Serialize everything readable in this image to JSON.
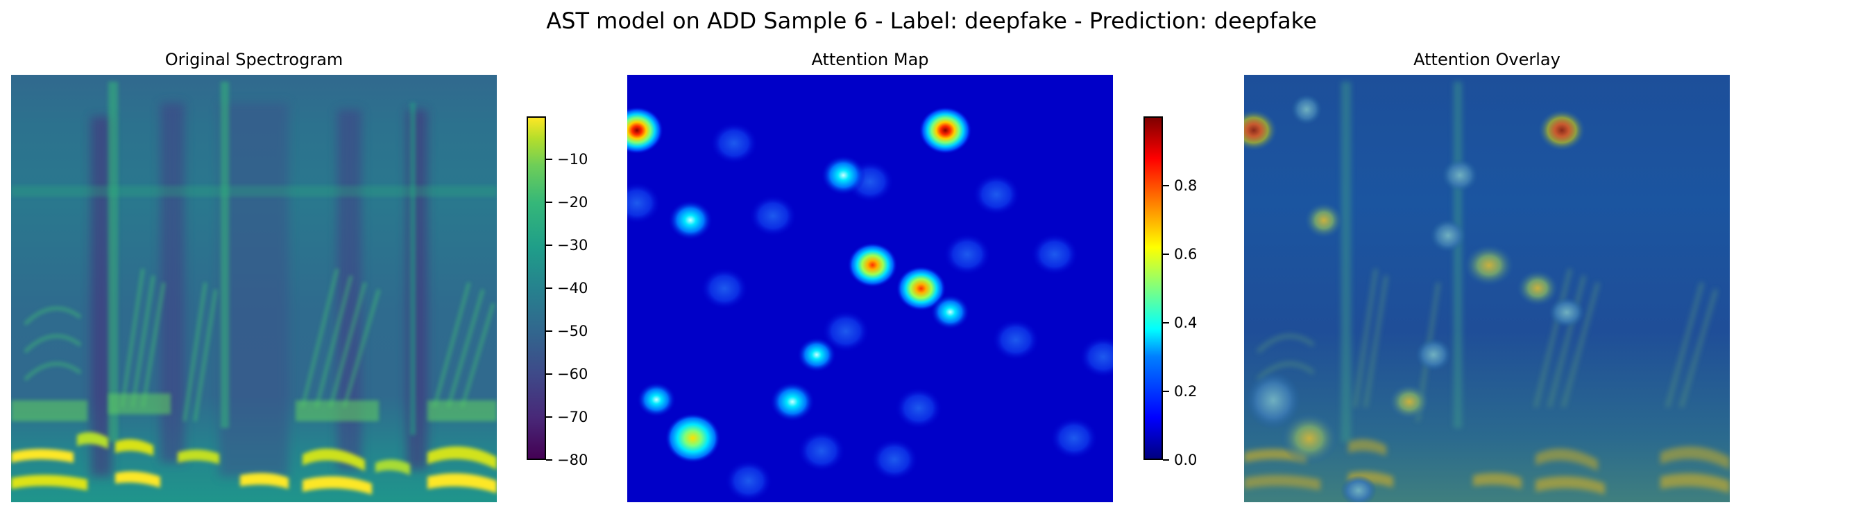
{
  "figure": {
    "title": "AST model on ADD Sample 6 - Label: deepfake - Prediction: deepfake"
  },
  "chart_data": [
    {
      "type": "heatmap",
      "title": "Original Spectrogram",
      "xlabel": "",
      "ylabel": "",
      "axes": "off",
      "colormap": "viridis",
      "colorbar": {
        "range": [
          -80,
          0
        ],
        "ticks": [
          -80,
          -70,
          -60,
          -50,
          -40,
          -30,
          -20,
          -10
        ],
        "tick_labels": [
          "−80",
          "−70",
          "−60",
          "−50",
          "−40",
          "−30",
          "−20",
          "−10"
        ]
      },
      "content": "mel spectrogram with bright low-frequency harmonic bands at several voiced segments"
    },
    {
      "type": "heatmap",
      "title": "Attention Map",
      "xlabel": "",
      "ylabel": "",
      "axes": "off",
      "colormap": "jet",
      "colorbar": {
        "range": [
          0,
          1
        ],
        "ticks": [
          0.0,
          0.2,
          0.4,
          0.6,
          0.8
        ],
        "tick_labels": [
          "0.0",
          "0.2",
          "0.4",
          "0.6",
          "0.8"
        ]
      },
      "hotspots": [
        {
          "x": 0.02,
          "y": 0.13,
          "value": 0.95
        },
        {
          "x": 0.655,
          "y": 0.13,
          "value": 0.95
        },
        {
          "x": 0.505,
          "y": 0.445,
          "value": 0.7
        },
        {
          "x": 0.605,
          "y": 0.5,
          "value": 0.6
        },
        {
          "x": 0.135,
          "y": 0.85,
          "value": 0.5
        },
        {
          "x": 0.13,
          "y": 0.34,
          "value": 0.4
        },
        {
          "x": 0.445,
          "y": 0.235,
          "value": 0.35
        },
        {
          "x": 0.34,
          "y": 0.765,
          "value": 0.4
        },
        {
          "x": 0.39,
          "y": 0.655,
          "value": 0.3
        },
        {
          "x": 0.665,
          "y": 0.555,
          "value": 0.3
        },
        {
          "x": 0.06,
          "y": 0.76,
          "value": 0.3
        }
      ]
    },
    {
      "type": "heatmap",
      "title": "Attention Overlay",
      "xlabel": "",
      "ylabel": "",
      "axes": "off",
      "content": "attention map (jet) blended over the original spectrogram"
    }
  ]
}
